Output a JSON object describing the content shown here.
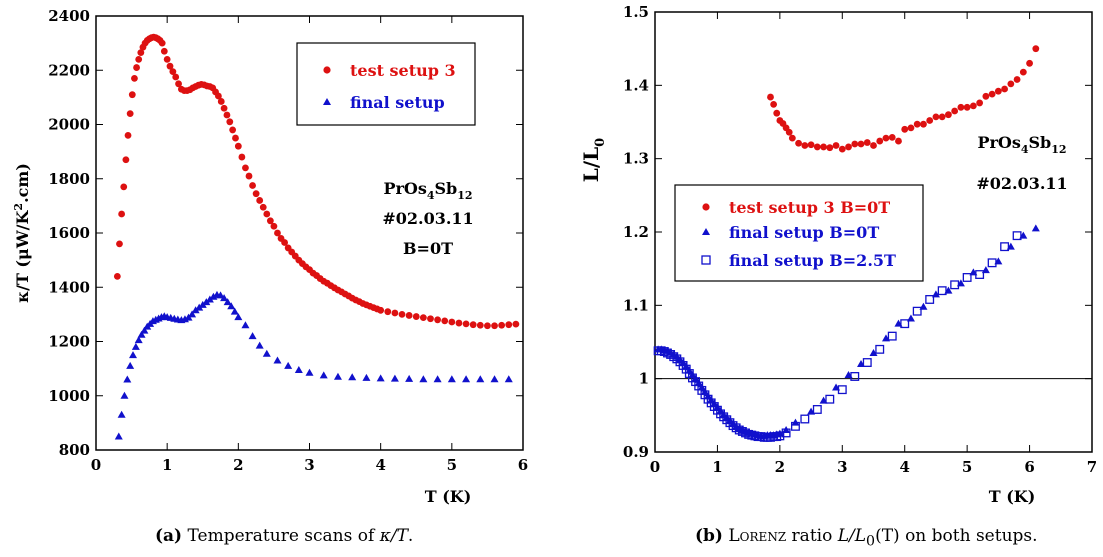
{
  "chart_data": [
    {
      "type": "scatter",
      "title": "",
      "xlabel": "T (K)",
      "ylabel": {
        "main": "κ/T (μW/K",
        "sup": "2",
        "tail": ".cm)"
      },
      "xlim": [
        0,
        6
      ],
      "ylim": [
        800,
        2400
      ],
      "xticks": [
        0,
        1,
        2,
        3,
        4,
        5,
        6
      ],
      "yticks": [
        800,
        1000,
        1200,
        1400,
        1600,
        1800,
        2000,
        2200,
        2400
      ],
      "legend_position": "top-right",
      "annotation": {
        "line1": {
          "base": "PrOs",
          "s1": "4",
          "mid": "Sb",
          "s2": "12"
        },
        "line2": "#02.03.11",
        "line3": "B=0T"
      },
      "series": [
        {
          "name": "test setup 3",
          "color": "#dd1111",
          "marker": "circle",
          "x": [
            0.3,
            0.33,
            0.36,
            0.39,
            0.42,
            0.45,
            0.48,
            0.51,
            0.54,
            0.57,
            0.6,
            0.63,
            0.66,
            0.69,
            0.72,
            0.75,
            0.78,
            0.81,
            0.84,
            0.87,
            0.9,
            0.93,
            0.96,
            1.0,
            1.04,
            1.08,
            1.12,
            1.16,
            1.2,
            1.24,
            1.28,
            1.32,
            1.36,
            1.4,
            1.44,
            1.48,
            1.52,
            1.56,
            1.6,
            1.64,
            1.68,
            1.72,
            1.76,
            1.8,
            1.84,
            1.88,
            1.92,
            1.96,
            2.0,
            2.05,
            2.1,
            2.15,
            2.2,
            2.25,
            2.3,
            2.35,
            2.4,
            2.45,
            2.5,
            2.55,
            2.6,
            2.65,
            2.7,
            2.75,
            2.8,
            2.85,
            2.9,
            2.95,
            3.0,
            3.05,
            3.1,
            3.15,
            3.2,
            3.25,
            3.3,
            3.35,
            3.4,
            3.45,
            3.5,
            3.55,
            3.6,
            3.65,
            3.7,
            3.75,
            3.8,
            3.85,
            3.9,
            3.95,
            4.0,
            4.1,
            4.2,
            4.3,
            4.4,
            4.5,
            4.6,
            4.7,
            4.8,
            4.9,
            5.0,
            5.1,
            5.2,
            5.3,
            5.4,
            5.5,
            5.6,
            5.7,
            5.8,
            5.9
          ],
          "y": [
            1440,
            1560,
            1670,
            1770,
            1870,
            1960,
            2040,
            2110,
            2170,
            2210,
            2240,
            2265,
            2285,
            2300,
            2310,
            2316,
            2320,
            2322,
            2320,
            2316,
            2310,
            2300,
            2270,
            2240,
            2215,
            2195,
            2175,
            2150,
            2130,
            2125,
            2125,
            2128,
            2135,
            2140,
            2145,
            2148,
            2146,
            2142,
            2140,
            2135,
            2120,
            2105,
            2085,
            2060,
            2035,
            2010,
            1980,
            1950,
            1920,
            1880,
            1840,
            1810,
            1775,
            1745,
            1720,
            1695,
            1670,
            1645,
            1625,
            1600,
            1580,
            1565,
            1545,
            1530,
            1515,
            1500,
            1487,
            1475,
            1465,
            1452,
            1443,
            1432,
            1422,
            1415,
            1406,
            1398,
            1390,
            1383,
            1375,
            1368,
            1360,
            1353,
            1347,
            1340,
            1335,
            1330,
            1325,
            1320,
            1315,
            1310,
            1305,
            1300,
            1296,
            1292,
            1288,
            1284,
            1280,
            1276,
            1272,
            1268,
            1265,
            1262,
            1260,
            1258,
            1258,
            1260,
            1262,
            1264
          ]
        },
        {
          "name": "final setup",
          "color": "#1111cc",
          "marker": "triangle",
          "x": [
            0.32,
            0.36,
            0.4,
            0.44,
            0.48,
            0.52,
            0.56,
            0.6,
            0.64,
            0.68,
            0.72,
            0.76,
            0.8,
            0.84,
            0.88,
            0.92,
            0.96,
            1.0,
            1.05,
            1.1,
            1.15,
            1.2,
            1.25,
            1.3,
            1.35,
            1.4,
            1.45,
            1.5,
            1.55,
            1.6,
            1.65,
            1.7,
            1.75,
            1.8,
            1.85,
            1.9,
            1.95,
            2.0,
            2.1,
            2.2,
            2.3,
            2.4,
            2.55,
            2.7,
            2.85,
            3.0,
            3.2,
            3.4,
            3.6,
            3.8,
            4.0,
            4.2,
            4.4,
            4.6,
            4.8,
            5.0,
            5.2,
            5.4,
            5.6,
            5.8
          ],
          "y": [
            850,
            930,
            1000,
            1060,
            1110,
            1150,
            1180,
            1205,
            1225,
            1240,
            1255,
            1265,
            1275,
            1280,
            1285,
            1290,
            1293,
            1290,
            1287,
            1284,
            1281,
            1279,
            1282,
            1288,
            1300,
            1315,
            1325,
            1335,
            1345,
            1355,
            1365,
            1372,
            1370,
            1360,
            1345,
            1330,
            1310,
            1290,
            1260,
            1220,
            1185,
            1155,
            1130,
            1110,
            1095,
            1085,
            1075,
            1070,
            1068,
            1066,
            1064,
            1063,
            1062,
            1061,
            1061,
            1061,
            1061,
            1061,
            1061,
            1061
          ]
        }
      ]
    },
    {
      "type": "scatter",
      "title": "",
      "xlabel": "T (K)",
      "ylabel": {
        "main": "L/L",
        "sub": "0"
      },
      "xlim": [
        0,
        7
      ],
      "ylim": [
        0.9,
        1.5
      ],
      "xticks": [
        0,
        1,
        2,
        3,
        4,
        5,
        6,
        7
      ],
      "yticks": [
        0.9,
        1,
        1.1,
        1.2,
        1.3,
        1.4,
        1.5
      ],
      "reference_line": 1,
      "legend_position": "center-left",
      "annotation": {
        "line1": {
          "base": "PrOs",
          "s1": "4",
          "mid": "Sb",
          "s2": "12"
        },
        "line2": "#02.03.11"
      },
      "series": [
        {
          "name": "test setup 3 B=0T",
          "color": "#dd1111",
          "marker": "circle",
          "x": [
            1.85,
            1.9,
            1.95,
            2.0,
            2.05,
            2.1,
            2.15,
            2.2,
            2.3,
            2.4,
            2.5,
            2.6,
            2.7,
            2.8,
            2.9,
            3.0,
            3.1,
            3.2,
            3.3,
            3.4,
            3.5,
            3.6,
            3.7,
            3.8,
            3.9,
            4.0,
            4.1,
            4.2,
            4.3,
            4.4,
            4.5,
            4.6,
            4.7,
            4.8,
            4.9,
            5.0,
            5.1,
            5.2,
            5.3,
            5.4,
            5.5,
            5.6,
            5.7,
            5.8,
            5.9,
            6.0,
            6.1
          ],
          "y": [
            1.384,
            1.374,
            1.362,
            1.352,
            1.348,
            1.342,
            1.336,
            1.328,
            1.321,
            1.318,
            1.319,
            1.316,
            1.316,
            1.315,
            1.318,
            1.313,
            1.316,
            1.32,
            1.32,
            1.322,
            1.318,
            1.324,
            1.328,
            1.329,
            1.324,
            1.34,
            1.342,
            1.347,
            1.347,
            1.352,
            1.357,
            1.357,
            1.36,
            1.365,
            1.37,
            1.37,
            1.372,
            1.376,
            1.385,
            1.388,
            1.392,
            1.395,
            1.402,
            1.408,
            1.418,
            1.43,
            1.45
          ]
        },
        {
          "name": "final setup B=0T",
          "color": "#1111cc",
          "marker": "triangle",
          "x": [
            0.05,
            0.1,
            0.15,
            0.2,
            0.25,
            0.3,
            0.35,
            0.4,
            0.45,
            0.5,
            0.55,
            0.6,
            0.65,
            0.7,
            0.75,
            0.8,
            0.85,
            0.9,
            0.95,
            1.0,
            1.05,
            1.1,
            1.15,
            1.2,
            1.25,
            1.3,
            1.35,
            1.4,
            1.45,
            1.5,
            1.55,
            1.6,
            1.65,
            1.7,
            1.75,
            1.8,
            1.85,
            1.9,
            1.95,
            2.0,
            2.1,
            2.25,
            2.5,
            2.7,
            2.9,
            3.1,
            3.3,
            3.5,
            3.7,
            3.9,
            4.1,
            4.3,
            4.5,
            4.7,
            4.9,
            5.1,
            5.3,
            5.5,
            5.7,
            5.9,
            6.1
          ],
          "y": [
            1.04,
            1.04,
            1.039,
            1.038,
            1.036,
            1.033,
            1.03,
            1.026,
            1.022,
            1.017,
            1.011,
            1.005,
            1.0,
            0.994,
            0.988,
            0.982,
            0.976,
            0.971,
            0.966,
            0.961,
            0.956,
            0.951,
            0.947,
            0.943,
            0.939,
            0.935,
            0.932,
            0.93,
            0.928,
            0.926,
            0.925,
            0.924,
            0.923,
            0.922,
            0.922,
            0.923,
            0.923,
            0.923,
            0.924,
            0.925,
            0.93,
            0.94,
            0.955,
            0.97,
            0.988,
            1.005,
            1.02,
            1.035,
            1.055,
            1.075,
            1.082,
            1.098,
            1.115,
            1.12,
            1.13,
            1.145,
            1.148,
            1.16,
            1.18,
            1.195,
            1.205
          ]
        },
        {
          "name": "final setup B=2.5T",
          "color": "#1111cc",
          "marker": "square-open",
          "x": [
            0.05,
            0.1,
            0.15,
            0.2,
            0.25,
            0.3,
            0.35,
            0.4,
            0.45,
            0.5,
            0.55,
            0.6,
            0.65,
            0.7,
            0.75,
            0.8,
            0.85,
            0.9,
            0.95,
            1.0,
            1.05,
            1.1,
            1.15,
            1.2,
            1.25,
            1.3,
            1.35,
            1.4,
            1.45,
            1.5,
            1.55,
            1.6,
            1.65,
            1.7,
            1.75,
            1.8,
            1.85,
            1.9,
            1.95,
            2.0,
            2.1,
            2.25,
            2.4,
            2.6,
            2.8,
            3.0,
            3.2,
            3.4,
            3.6,
            3.8,
            4.0,
            4.2,
            4.4,
            4.6,
            4.8,
            5.0,
            5.2,
            5.4,
            5.6,
            5.8
          ],
          "y": [
            1.038,
            1.038,
            1.037,
            1.035,
            1.033,
            1.03,
            1.027,
            1.023,
            1.018,
            1.013,
            1.007,
            1.001,
            0.996,
            0.99,
            0.984,
            0.978,
            0.972,
            0.967,
            0.962,
            0.957,
            0.952,
            0.948,
            0.944,
            0.94,
            0.936,
            0.933,
            0.93,
            0.928,
            0.926,
            0.924,
            0.923,
            0.922,
            0.921,
            0.921,
            0.92,
            0.92,
            0.92,
            0.921,
            0.921,
            0.922,
            0.926,
            0.935,
            0.945,
            0.958,
            0.972,
            0.985,
            1.003,
            1.022,
            1.04,
            1.058,
            1.075,
            1.092,
            1.108,
            1.12,
            1.128,
            1.138,
            1.142,
            1.158,
            1.18,
            1.195
          ]
        }
      ]
    }
  ],
  "captions": [
    {
      "label": "(a)",
      "text_pre": "Temperature scans of ",
      "math": "κ/T",
      "text_post": "."
    },
    {
      "label": "(b)",
      "sc": "Lorenz",
      "text_pre": " ratio ",
      "math": "L/L",
      "sub": "0",
      "text_post": "(T) on both setups."
    }
  ]
}
